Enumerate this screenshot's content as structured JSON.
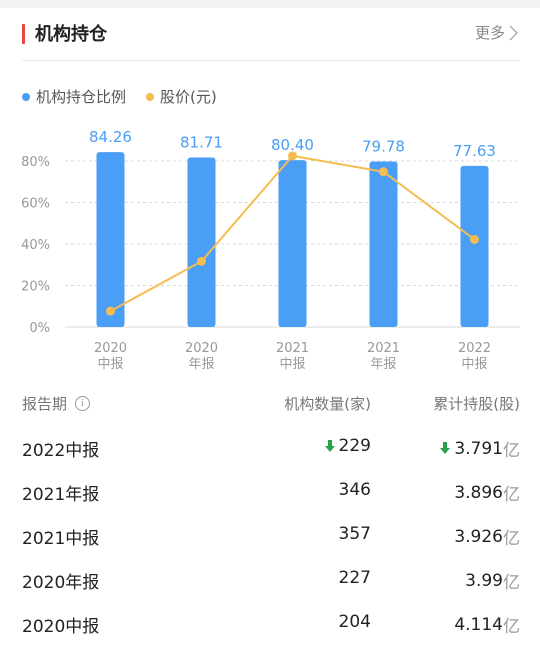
{
  "header": {
    "title": "机构持仓",
    "more_label": "更多"
  },
  "legend": [
    {
      "label": "机构持仓比例",
      "color": "#4a9ef5"
    },
    {
      "label": "股价(元)",
      "color": "#f5bd51"
    }
  ],
  "chart_data": {
    "type": "bar",
    "categories": [
      [
        "2020",
        "中报"
      ],
      [
        "2020",
        "年报"
      ],
      [
        "2021",
        "中报"
      ],
      [
        "2021",
        "年报"
      ],
      [
        "2022",
        "中报"
      ]
    ],
    "series": [
      {
        "name": "机构持仓比例",
        "type": "bar",
        "values": [
          84.26,
          81.71,
          80.4,
          79.78,
          77.63
        ],
        "labels": [
          "84.26",
          "81.71",
          "80.40",
          "79.78",
          "77.63"
        ],
        "color": "#4a9ef5"
      },
      {
        "name": "股价(元)",
        "type": "line",
        "relative_levels": [
          0.08,
          0.33,
          0.86,
          0.78,
          0.44
        ],
        "color": "#f5bd51"
      }
    ],
    "yticks": [
      "80%",
      "60%",
      "40%",
      "20%",
      "0%"
    ],
    "ytick_values": [
      80,
      60,
      40,
      20,
      0
    ],
    "ylim": [
      0,
      80
    ],
    "grid": true
  },
  "table": {
    "headers": {
      "period": "报告期",
      "info_icon": "i",
      "count": "机构数量(家)",
      "shares": "累计持股(股)"
    },
    "rows": [
      {
        "period": "2022中报",
        "count": "229",
        "shares": "3.791",
        "unit": "亿",
        "count_down": true,
        "shares_down": true
      },
      {
        "period": "2021年报",
        "count": "346",
        "shares": "3.896",
        "unit": "亿",
        "count_down": false,
        "shares_down": false
      },
      {
        "period": "2021中报",
        "count": "357",
        "shares": "3.926",
        "unit": "亿",
        "count_down": false,
        "shares_down": false
      },
      {
        "period": "2020年报",
        "count": "227",
        "shares": "3.99",
        "unit": "亿",
        "count_down": false,
        "shares_down": false
      },
      {
        "period": "2020中报",
        "count": "204",
        "shares": "4.114",
        "unit": "亿",
        "count_down": false,
        "shares_down": false
      }
    ],
    "down_color": "#2aa14a"
  }
}
